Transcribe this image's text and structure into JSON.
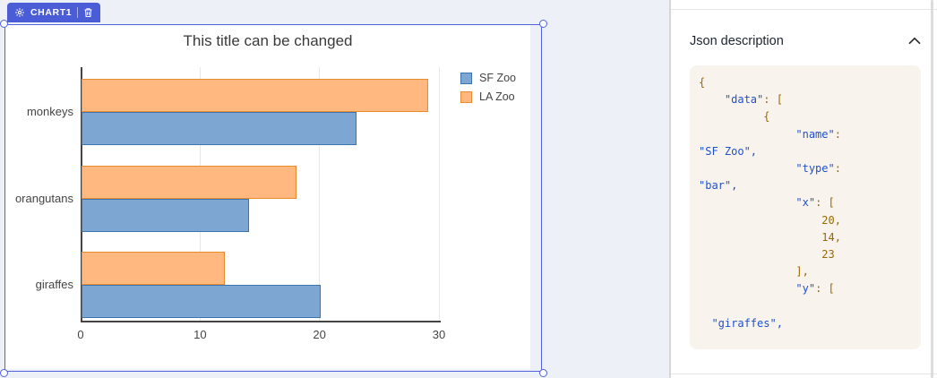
{
  "canvas": {
    "widget_tag": {
      "label": "CHART1"
    }
  },
  "chart_data": {
    "type": "bar",
    "orientation": "horizontal",
    "title": "This title can be changed",
    "categories": [
      "monkeys",
      "orangutans",
      "giraffes"
    ],
    "series": [
      {
        "name": "SF Zoo",
        "values": [
          23,
          14,
          20
        ],
        "fill": "#7da6d2",
        "border": "#3c74b0"
      },
      {
        "name": "LA Zoo",
        "values": [
          29,
          18,
          12
        ],
        "fill": "#ffb87f",
        "border": "#eb8b2d"
      }
    ],
    "xlim": [
      0,
      30
    ],
    "x_ticks": [
      0,
      10,
      20,
      30
    ],
    "grid": true,
    "legend_position": "top-right"
  },
  "panel": {
    "header": "Json description",
    "chevron_icon": "chevron-up",
    "code_lines": [
      [
        {
          "c": "pun",
          "t": "{"
        }
      ],
      [
        {
          "c": "pun",
          "t": "    "
        },
        {
          "c": "str",
          "t": "\"data\""
        },
        {
          "c": "pun",
          "t": ": ["
        }
      ],
      [
        {
          "c": "pun",
          "t": "          "
        },
        {
          "c": "pun",
          "t": "{"
        }
      ],
      [
        {
          "c": "pun",
          "t": "               "
        },
        {
          "c": "str",
          "t": "\"name\""
        },
        {
          "c": "pun",
          "t": ":"
        }
      ],
      [
        {
          "c": "str",
          "t": "\"SF Zoo\","
        }
      ],
      [
        {
          "c": "pun",
          "t": "               "
        },
        {
          "c": "str",
          "t": "\"type\""
        },
        {
          "c": "pun",
          "t": ":"
        }
      ],
      [
        {
          "c": "str",
          "t": "\"bar\","
        }
      ],
      [
        {
          "c": "pun",
          "t": "               "
        },
        {
          "c": "str",
          "t": "\"x\""
        },
        {
          "c": "pun",
          "t": ": ["
        }
      ],
      [
        {
          "c": "pun",
          "t": "                   "
        },
        {
          "c": "pun",
          "t": "20,"
        }
      ],
      [
        {
          "c": "pun",
          "t": "                   "
        },
        {
          "c": "pun",
          "t": "14,"
        }
      ],
      [
        {
          "c": "pun",
          "t": "                   "
        },
        {
          "c": "pun",
          "t": "23"
        }
      ],
      [
        {
          "c": "pun",
          "t": "               "
        },
        {
          "c": "pun",
          "t": "],"
        }
      ],
      [
        {
          "c": "pun",
          "t": "               "
        },
        {
          "c": "str",
          "t": "\"y\""
        },
        {
          "c": "pun",
          "t": ": ["
        }
      ],
      [],
      [
        {
          "c": "pun",
          "t": "  "
        },
        {
          "c": "str",
          "t": "\"giraffes\","
        }
      ]
    ]
  },
  "colors": {
    "selection_blue": "#5163e0",
    "tag_blue": "#4a5cd6",
    "canvas_bg": "#edf0f6",
    "code_bg": "#f8f4ed",
    "code_string": "#2150c6",
    "code_punct": "#9a6702"
  }
}
